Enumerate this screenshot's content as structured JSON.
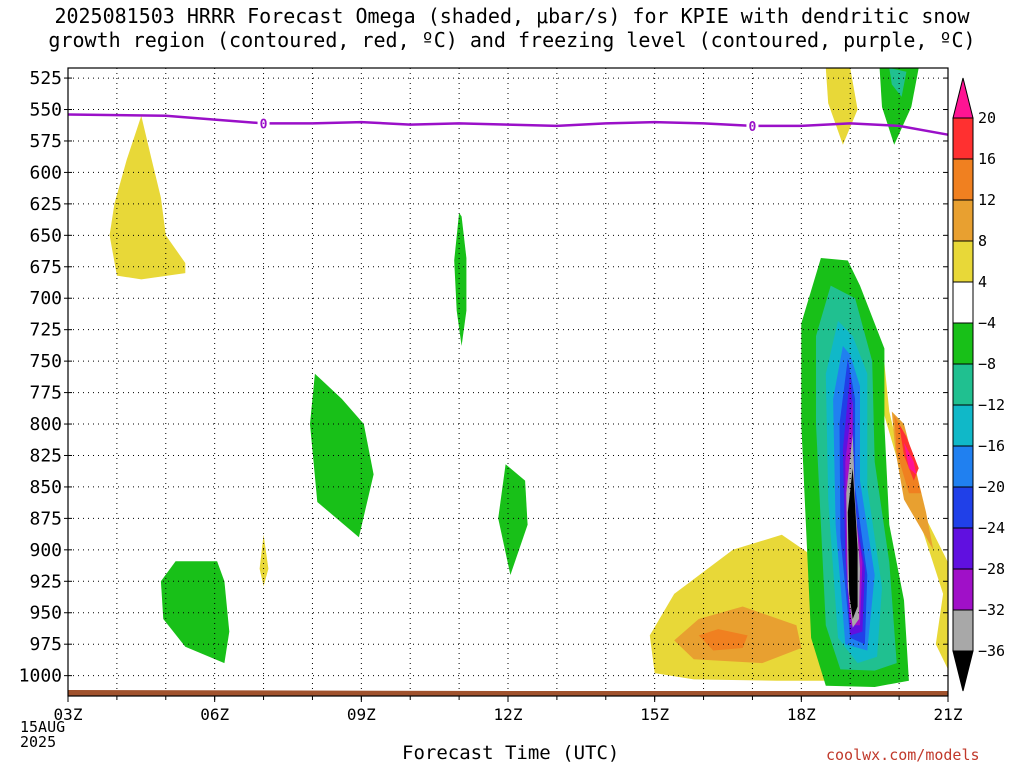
{
  "title_line1": "2025081503 HRRR Forecast Omega (shaded, μbar/s) for KPIE with dendritic snow",
  "title_line2": "growth region (contoured, red, ºC) and freezing level (contoured, purple, ºC)",
  "x_axis_label": "Forecast Time (UTC)",
  "date_block": [
    "15AUG",
    "2025"
  ],
  "credit": "coolwx.com/models",
  "chart_data": {
    "type": "heatmap",
    "x_ticks": [
      "03Z",
      "06Z",
      "09Z",
      "12Z",
      "15Z",
      "18Z",
      "21Z"
    ],
    "x_range_hours": [
      3,
      21
    ],
    "y_ticks": [
      525,
      550,
      575,
      600,
      625,
      650,
      675,
      700,
      725,
      750,
      775,
      800,
      825,
      850,
      875,
      900,
      925,
      950,
      975,
      1000
    ],
    "y_range_mb": [
      517,
      1013
    ],
    "grid": true,
    "colorbar": {
      "labels": [
        "20",
        "16",
        "12",
        "8",
        "4",
        "−4",
        "−8",
        "−12",
        "−16",
        "−20",
        "−24",
        "−28",
        "−32",
        "−36"
      ],
      "colors": [
        "#ff1493",
        "#ff3030",
        "#f08020",
        "#e8a030",
        "#e8d838",
        "#ffffff",
        "#18c018",
        "#20c090",
        "#10b8c8",
        "#2080f0",
        "#2040e8",
        "#6010e0",
        "#a010c8",
        "#a8a8a8",
        "#000000"
      ]
    },
    "freezing_level": {
      "label": "0",
      "label_hours": [
        7,
        17
      ],
      "points": [
        [
          3,
          554
        ],
        [
          5,
          555
        ],
        [
          6,
          558
        ],
        [
          7,
          561
        ],
        [
          8,
          561
        ],
        [
          9,
          560
        ],
        [
          10,
          562
        ],
        [
          11,
          561
        ],
        [
          12,
          562
        ],
        [
          13,
          563
        ],
        [
          14,
          561
        ],
        [
          15,
          560
        ],
        [
          16,
          561
        ],
        [
          17,
          563
        ],
        [
          18,
          563
        ],
        [
          19,
          561
        ],
        [
          20,
          563
        ],
        [
          21,
          570
        ]
      ]
    },
    "terrain": {
      "color": "#a0522d",
      "pressure_mb": 1012
    }
  }
}
